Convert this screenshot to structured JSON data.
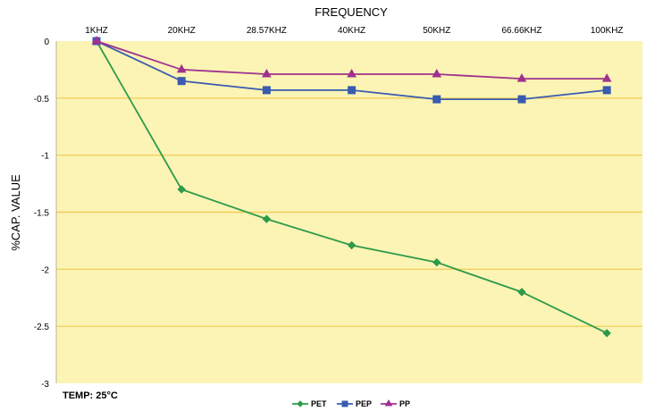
{
  "chart_data": {
    "type": "line",
    "title": "",
    "xlabel": "FREQUENCY",
    "ylabel": "%CAP. VALUE",
    "x_axis_position": "top",
    "categories": [
      "1KHZ",
      "20KHZ",
      "28.57KHZ",
      "40KHZ",
      "50KHZ",
      "66.66KHZ",
      "100KHZ"
    ],
    "ylim": [
      -3,
      0
    ],
    "yticks": [
      0,
      -0.5,
      -1,
      -1.5,
      -2,
      -2.5,
      -3
    ],
    "ytick_labels": [
      "0",
      "-0.5",
      "-1",
      "-1.5",
      "-2",
      "-2.5",
      "-3"
    ],
    "grid": true,
    "legend_position": "bottom-center",
    "series": [
      {
        "name": "PET",
        "color": "#2e9a4a",
        "marker": "diamond",
        "values": [
          0,
          -1.3,
          -1.56,
          -1.79,
          -1.94,
          -2.2,
          -2.56
        ]
      },
      {
        "name": "PEP",
        "color": "#3a5bb0",
        "marker": "square",
        "values": [
          0,
          -0.35,
          -0.43,
          -0.43,
          -0.51,
          -0.51,
          -0.43
        ]
      },
      {
        "name": "PP",
        "color": "#a0318f",
        "marker": "triangle",
        "values": [
          0,
          -0.25,
          -0.29,
          -0.29,
          -0.29,
          -0.33,
          -0.33
        ]
      }
    ],
    "annotations": [
      "TEMP: 25°C"
    ],
    "plot_background": "#fbf4b4",
    "gridline_color": "#f2c84b"
  }
}
